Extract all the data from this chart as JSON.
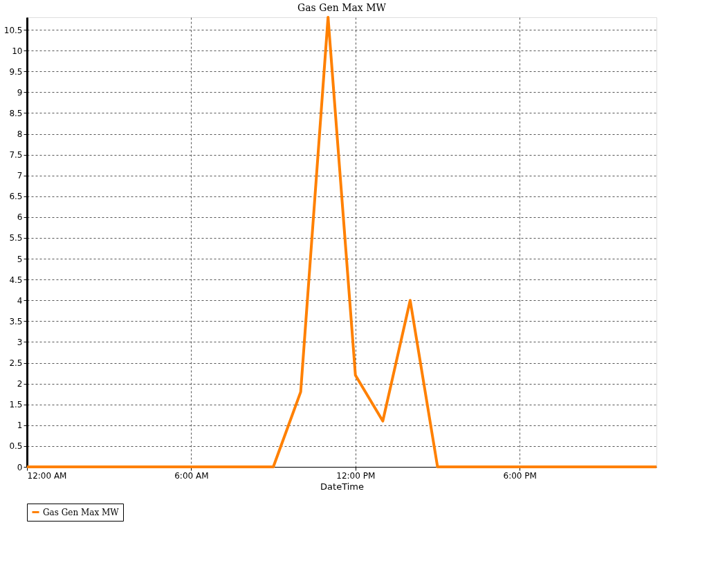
{
  "chart_data": {
    "type": "line",
    "title": "Gas Gen Max MW",
    "xlabel": "DateTime",
    "x": [
      0,
      1,
      2,
      3,
      4,
      5,
      6,
      7,
      8,
      9,
      10,
      11,
      12,
      13,
      14,
      15,
      16,
      17,
      18,
      19,
      20,
      21,
      22,
      23
    ],
    "series": [
      {
        "name": "Gas Gen Max MW",
        "color": "#ff8000",
        "values": [
          0,
          0,
          0,
          0,
          0,
          0,
          0,
          0,
          0,
          0,
          1.8,
          10.8,
          2.2,
          1.1,
          4,
          0,
          0,
          0,
          0,
          0,
          0,
          0,
          0,
          0
        ]
      }
    ],
    "xlim": [
      0,
      23
    ],
    "xticks": [
      {
        "value": 0,
        "label": "12:00 AM"
      },
      {
        "value": 6,
        "label": "6:00 AM"
      },
      {
        "value": 12,
        "label": "12:00 PM"
      },
      {
        "value": 18,
        "label": "6:00 PM"
      }
    ],
    "ylim": [
      0,
      10.8
    ],
    "yticks": [
      0,
      0.5,
      1,
      1.5,
      2,
      2.5,
      3,
      3.5,
      4,
      4.5,
      5,
      5.5,
      6,
      6.5,
      7,
      7.5,
      8,
      8.5,
      9,
      9.5,
      10,
      10.5
    ],
    "grid": true,
    "legend": "bottom",
    "marker": "none",
    "line_style": "solid"
  }
}
